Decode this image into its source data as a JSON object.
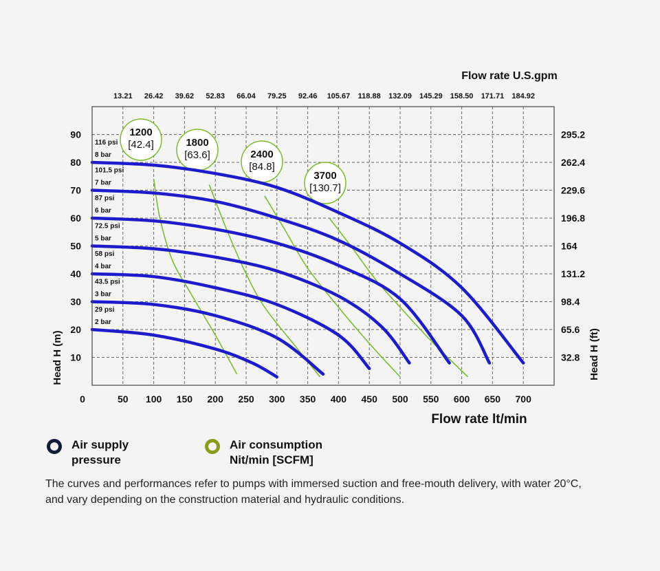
{
  "colors": {
    "pressure": "#1c1ccc",
    "consumption": "#7dbb2a",
    "psi": "#e0202a",
    "bar": "#1c1ccc",
    "grid": "#666666",
    "legend_pressure_ring": "#101a3a",
    "legend_consumption_ring": "#8a9a1a"
  },
  "chart_data": {
    "type": "line",
    "x_label": "Flow rate lt/min",
    "x2_label": "Flow rate U.S.gpm",
    "y_label": "Head H (m)",
    "y2_label": "Head H (ft)",
    "xlim": [
      0,
      750
    ],
    "ylim": [
      0,
      100
    ],
    "x_ticks": [
      "0",
      "50",
      "100",
      "150",
      "200",
      "250",
      "300",
      "350",
      "400",
      "450",
      "500",
      "550",
      "600",
      "650",
      "700"
    ],
    "x_tick_values": [
      0,
      50,
      100,
      150,
      200,
      250,
      300,
      350,
      400,
      450,
      500,
      550,
      600,
      650,
      700
    ],
    "x2_ticks": [
      "13.21",
      "26.42",
      "39.62",
      "52.83",
      "66.04",
      "79.25",
      "92.46",
      "105.67",
      "118.88",
      "132.09",
      "145.29",
      "158.50",
      "171.71",
      "184.92"
    ],
    "y_ticks": [
      "10",
      "20",
      "30",
      "40",
      "50",
      "60",
      "70",
      "80",
      "90"
    ],
    "y_tick_values": [
      10,
      20,
      30,
      40,
      50,
      60,
      70,
      80,
      90
    ],
    "y2_ticks": [
      "32.8",
      "65.6",
      "98.4",
      "131.2",
      "164",
      "196.8",
      "229.6",
      "262.4",
      "295.2"
    ],
    "pressure_labels": [
      {
        "psi": "116 psi",
        "bar": "8 bar",
        "head": 80
      },
      {
        "psi": "101.5 psi",
        "bar": "7 bar",
        "head": 70
      },
      {
        "psi": "87 psi",
        "bar": "6 bar",
        "head": 60
      },
      {
        "psi": "72.5 psi",
        "bar": "5 bar",
        "head": 50
      },
      {
        "psi": "58 psi",
        "bar": "4 bar",
        "head": 40
      },
      {
        "psi": "43.5 psi",
        "bar": "3 bar",
        "head": 30
      },
      {
        "psi": "29 psi",
        "bar": "2 bar",
        "head": 20
      }
    ],
    "series": [
      {
        "name": "8 bar",
        "values": [
          [
            0,
            80
          ],
          [
            100,
            79
          ],
          [
            200,
            76
          ],
          [
            300,
            71
          ],
          [
            400,
            62
          ],
          [
            500,
            51
          ],
          [
            600,
            35
          ],
          [
            700,
            8
          ]
        ]
      },
      {
        "name": "7 bar",
        "values": [
          [
            0,
            70
          ],
          [
            100,
            69
          ],
          [
            200,
            66
          ],
          [
            300,
            60
          ],
          [
            400,
            52
          ],
          [
            500,
            40
          ],
          [
            600,
            25
          ],
          [
            645,
            8
          ]
        ]
      },
      {
        "name": "6 bar",
        "values": [
          [
            0,
            60
          ],
          [
            100,
            59
          ],
          [
            200,
            56
          ],
          [
            300,
            51
          ],
          [
            400,
            43
          ],
          [
            500,
            31
          ],
          [
            580,
            8
          ]
        ]
      },
      {
        "name": "5 bar",
        "values": [
          [
            0,
            50
          ],
          [
            100,
            49
          ],
          [
            200,
            46
          ],
          [
            300,
            41
          ],
          [
            400,
            32
          ],
          [
            470,
            21
          ],
          [
            515,
            8
          ]
        ]
      },
      {
        "name": "4 bar",
        "values": [
          [
            0,
            40
          ],
          [
            100,
            39
          ],
          [
            200,
            35
          ],
          [
            300,
            29
          ],
          [
            400,
            18
          ],
          [
            450,
            6
          ]
        ]
      },
      {
        "name": "3 bar",
        "values": [
          [
            0,
            30
          ],
          [
            100,
            29
          ],
          [
            200,
            25
          ],
          [
            300,
            17
          ],
          [
            375,
            4
          ]
        ]
      },
      {
        "name": "2 bar",
        "values": [
          [
            0,
            20
          ],
          [
            100,
            18
          ],
          [
            200,
            13
          ],
          [
            260,
            8
          ],
          [
            300,
            3
          ]
        ]
      }
    ],
    "consumption_curves": [
      {
        "label": "1200",
        "sublabel": "[42.4]",
        "values": [
          [
            100,
            74
          ],
          [
            110,
            60
          ],
          [
            130,
            45
          ],
          [
            160,
            33
          ],
          [
            200,
            18
          ],
          [
            235,
            4
          ]
        ]
      },
      {
        "label": "1800",
        "sublabel": "[63.6]",
        "values": [
          [
            190,
            72
          ],
          [
            220,
            55
          ],
          [
            250,
            40
          ],
          [
            280,
            28
          ],
          [
            330,
            14
          ],
          [
            370,
            3
          ]
        ]
      },
      {
        "label": "2400",
        "sublabel": "[84.8]",
        "values": [
          [
            280,
            68
          ],
          [
            315,
            55
          ],
          [
            350,
            42
          ],
          [
            400,
            28
          ],
          [
            450,
            15
          ],
          [
            500,
            3
          ]
        ]
      },
      {
        "label": "3700",
        "sublabel": "[130.7]",
        "values": [
          [
            385,
            60
          ],
          [
            420,
            50
          ],
          [
            460,
            38
          ],
          [
            500,
            28
          ],
          [
            550,
            16
          ],
          [
            610,
            3
          ]
        ]
      }
    ]
  },
  "legend": {
    "pressure_label": "Air supply\npressure",
    "consumption_label": "Air consumption\nNit/min [SCFM]"
  },
  "note": "The curves and performances refer to pumps with immersed suction and free-mouth delivery, with water 20°C, and vary depending on the construction material and hydraulic conditions."
}
